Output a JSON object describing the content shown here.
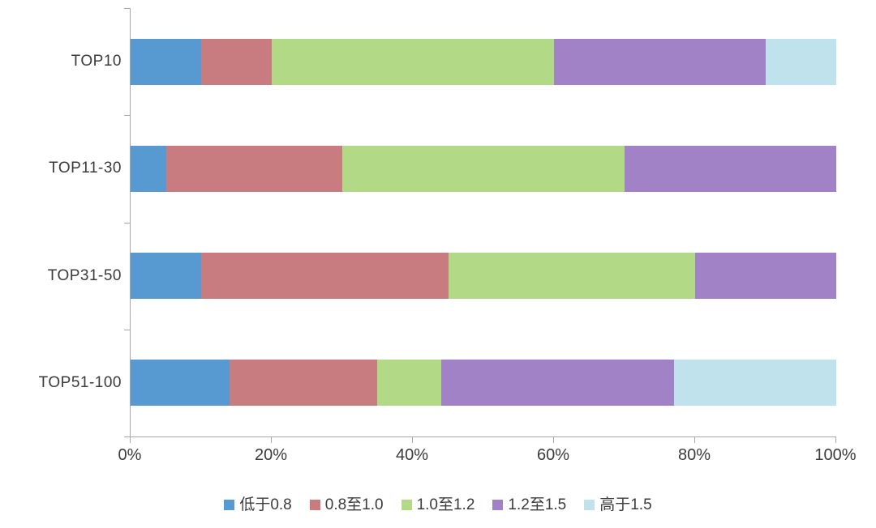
{
  "chart_data": {
    "type": "bar",
    "orientation": "horizontal",
    "stacked": true,
    "title": "",
    "categories": [
      "TOP10",
      "TOP11-30",
      "TOP31-50",
      "TOP51-100"
    ],
    "series": [
      {
        "name": "低于0.8",
        "color": "#569ad1",
        "values": [
          10,
          5,
          10,
          14
        ]
      },
      {
        "name": "0.8至1.0",
        "color": "#c97c80",
        "values": [
          10,
          25,
          35,
          21
        ]
      },
      {
        "name": "1.0至1.2",
        "color": "#b2d985",
        "values": [
          40,
          40,
          35,
          9
        ]
      },
      {
        "name": "1.2至1.5",
        "color": "#a182c7",
        "values": [
          30,
          30,
          20,
          33
        ]
      },
      {
        "name": "高于1.5",
        "color": "#c0e2ed",
        "values": [
          10,
          0,
          0,
          23
        ]
      }
    ],
    "x_axis": {
      "min": 0,
      "max": 100,
      "tick_labels": [
        "0%",
        "20%",
        "40%",
        "60%",
        "80%",
        "100%"
      ]
    },
    "legend_position": "bottom",
    "grid": false,
    "colors": {
      "axis": "#a6a6a6",
      "text": "#3b3b3b",
      "background": "#ffffff"
    }
  }
}
